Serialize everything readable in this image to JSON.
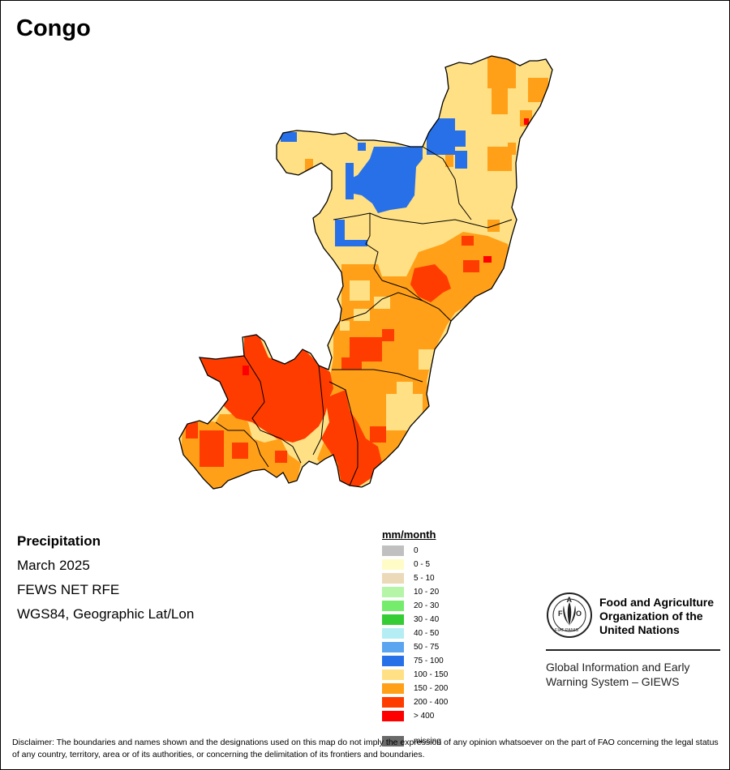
{
  "title": "Congo",
  "info": {
    "variable": "Precipitation",
    "date": "March 2025",
    "source": "FEWS NET RFE",
    "projection": "WGS84, Geographic Lat/Lon"
  },
  "legend": {
    "title": "mm/month",
    "items": [
      {
        "label": "0",
        "color": "#c0c0c0"
      },
      {
        "label": "0 - 5",
        "color": "#fffcc8"
      },
      {
        "label": "5 - 10",
        "color": "#ecd9b8"
      },
      {
        "label": "10 - 20",
        "color": "#b4f5a8"
      },
      {
        "label": "20 - 30",
        "color": "#76ec6c"
      },
      {
        "label": "30 - 40",
        "color": "#36cc36"
      },
      {
        "label": "40 - 50",
        "color": "#b4eef4"
      },
      {
        "label": "50 - 75",
        "color": "#5aa4f0"
      },
      {
        "label": "75 - 100",
        "color": "#2870e8"
      },
      {
        "label": "100 - 150",
        "color": "#ffe084"
      },
      {
        "label": "150 - 200",
        "color": "#ffa018"
      },
      {
        "label": "200 - 400",
        "color": "#ff3c00"
      },
      {
        "label": "> 400",
        "color": "#ff0000"
      },
      {
        "label": "missing",
        "color": "#6a6a6a"
      }
    ]
  },
  "org": {
    "logo_text": "FAO",
    "logo_motto": "FIAT PANIS",
    "name": "Food and Agriculture\nOrganization of the\nUnited Nations",
    "system": "Global Information and Early\nWarning System – GIEWS"
  },
  "disclaimer": "Disclaimer: The boundaries and names shown and the designations used on this map do not imply the expression of any opinion whatsoever on the part of FAO concerning the legal status of any country, territory, area or of its authorities, or concerning the delimitation of its frontiers and boundaries.",
  "map_regions": [
    {
      "name": "country-fill",
      "class": "100 - 150"
    },
    {
      "name": "north-orange-patches",
      "class": "150 - 200"
    },
    {
      "name": "north-blue-area",
      "class": "75 - 100"
    },
    {
      "name": "central-orange-area",
      "class": "150 - 200"
    },
    {
      "name": "central-red-patch",
      "class": "200 - 400"
    },
    {
      "name": "southwest-red-area",
      "class": "200 - 400"
    },
    {
      "name": "south-orange-area",
      "class": "150 - 200"
    },
    {
      "name": "south-yellow-patches",
      "class": "100 - 150"
    },
    {
      "name": "extreme-red-spots",
      "class": "> 400"
    }
  ]
}
